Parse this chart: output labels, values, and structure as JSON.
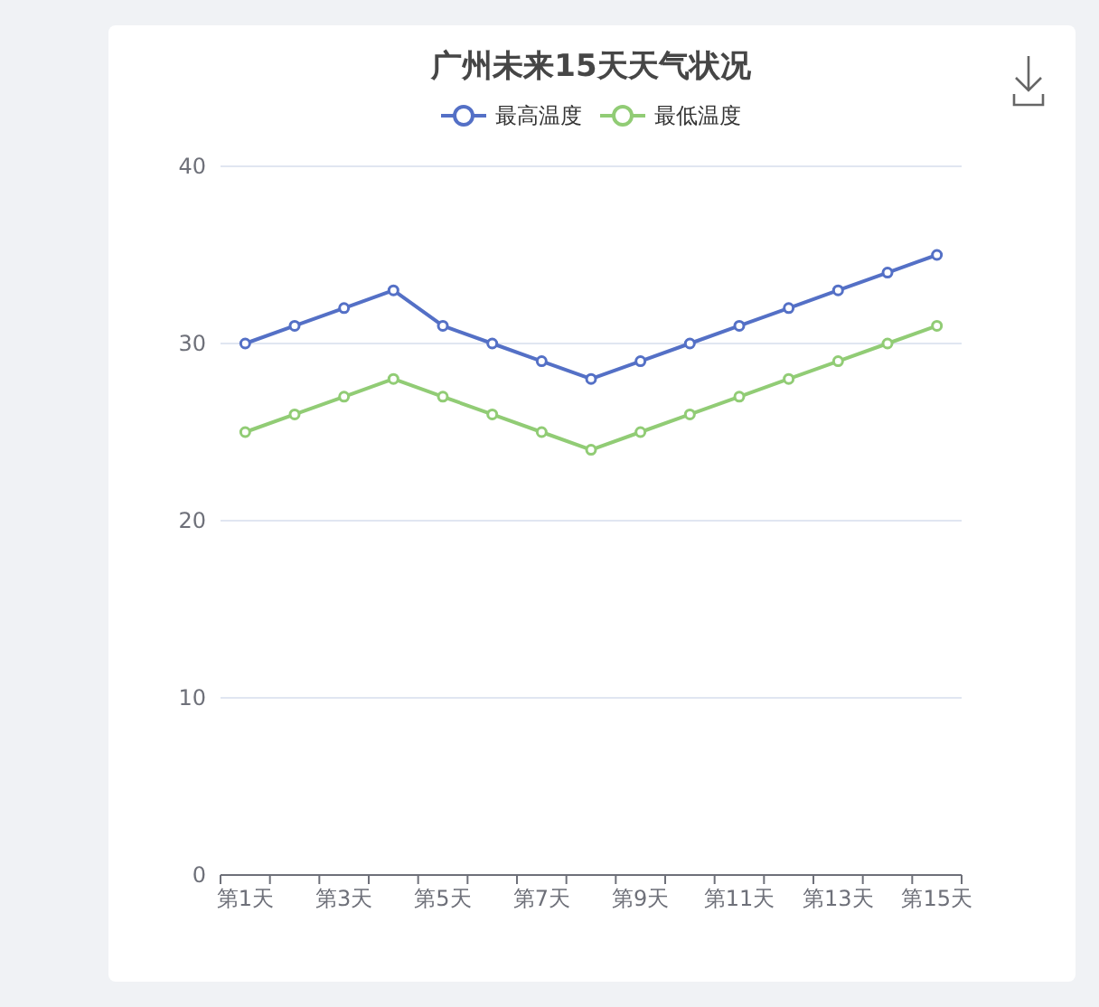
{
  "chart_data": {
    "type": "line",
    "title": "广州未来15天天气状况",
    "categories": [
      "第1天",
      null,
      "第3天",
      null,
      "第5天",
      null,
      "第7天",
      null,
      "第9天",
      null,
      "第11天",
      null,
      "第13天",
      null,
      "第15天"
    ],
    "series": [
      {
        "name": "最高温度",
        "color": "#5470c6",
        "values": [
          30,
          31,
          32,
          33,
          31,
          30,
          29,
          28,
          29,
          30,
          31,
          32,
          33,
          34,
          35
        ]
      },
      {
        "name": "最低温度",
        "color": "#91cc75",
        "values": [
          25,
          26,
          27,
          28,
          27,
          26,
          25,
          24,
          25,
          26,
          27,
          28,
          29,
          30,
          31
        ]
      }
    ],
    "ylim": [
      0,
      40
    ],
    "yticks": [
      0,
      10,
      20,
      30,
      40
    ],
    "grid": "y",
    "legend": "top",
    "marker": "circle",
    "line_style": "solid"
  }
}
